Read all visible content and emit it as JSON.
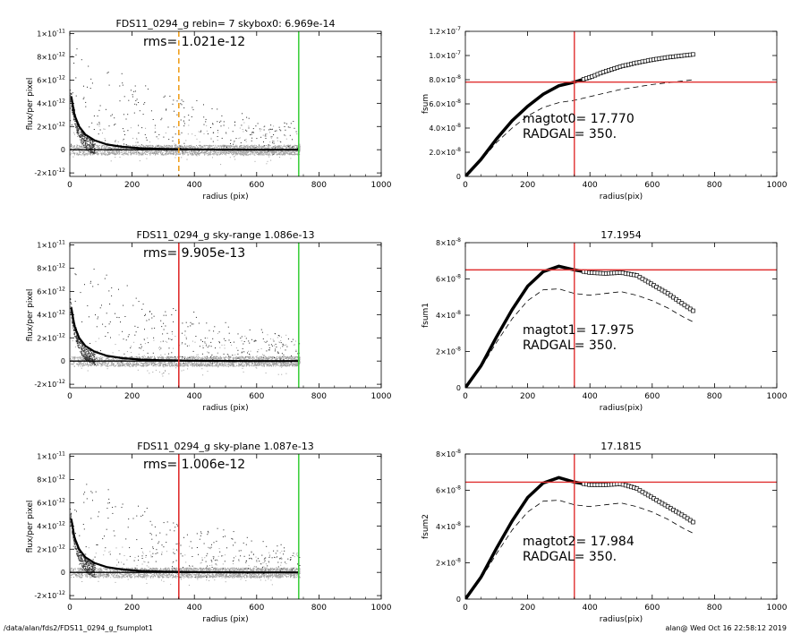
{
  "footer": {
    "path": "/data/alan/fds2/FDS11_0294_g_fsumplot1",
    "stamp": "alan@  Wed Oct 16 22:58:12 2019"
  },
  "colors": {
    "grey_points": "#a0a0a0",
    "profile": "#000000",
    "red_line": "#e03030",
    "green_line": "#40d040",
    "orange_dash": "#f0a020"
  },
  "chart_data": [
    {
      "type": "scatter",
      "title": "FDS11_0294_g rebin= 7    skybox0:  6.969e-14",
      "annotation": "rms= 1.021e-12",
      "xlabel": "radius (pix)",
      "ylabel": "flux/per pixel",
      "xlim": [
        0,
        1000
      ],
      "ylim": [
        -2.3e-12,
        1.02e-11
      ],
      "xticks": [
        "0",
        "200",
        "400",
        "600",
        "800",
        "1000"
      ],
      "yticks": [
        {
          "v": -2e-12,
          "m": "-2",
          "e": "-12"
        },
        {
          "v": 0,
          "m": "0",
          "e": ""
        },
        {
          "v": 2e-12,
          "m": "2",
          "e": "-12"
        },
        {
          "v": 4e-12,
          "m": "4",
          "e": "-12"
        },
        {
          "v": 6e-12,
          "m": "6",
          "e": "-12"
        },
        {
          "v": 8e-12,
          "m": "8",
          "e": "-12"
        },
        {
          "v": 1e-11,
          "m": "1",
          "e": "-11"
        }
      ],
      "vlines": [
        {
          "x": 350,
          "color": "orange",
          "dash": true
        },
        {
          "x": 735,
          "color": "green",
          "dash": false
        }
      ],
      "profile": [
        [
          5,
          4.6e-12
        ],
        [
          15,
          3e-12
        ],
        [
          30,
          2e-12
        ],
        [
          50,
          1.3e-12
        ],
        [
          80,
          8e-13
        ],
        [
          120,
          4.5e-13
        ],
        [
          170,
          2.5e-13
        ],
        [
          230,
          1.2e-13
        ],
        [
          300,
          6e-14
        ],
        [
          400,
          3e-14
        ],
        [
          500,
          1e-14
        ],
        [
          600,
          0
        ],
        [
          735,
          0
        ]
      ]
    },
    {
      "type": "line",
      "title": "",
      "annotation": [
        "magtot0=  17.770",
        "RADGAL=    350."
      ],
      "xlabel": "radius(pix)",
      "ylabel": "fsum",
      "xlim": [
        0,
        1000
      ],
      "ylim": [
        0,
        1.2e-07
      ],
      "xticks": [
        "0",
        "200",
        "400",
        "600",
        "800",
        "1000"
      ],
      "yticks": [
        {
          "v": 0,
          "m": "0",
          "e": ""
        },
        {
          "v": 2e-08,
          "m": "2.0",
          "e": "-8"
        },
        {
          "v": 4e-08,
          "m": "4.0",
          "e": "-8"
        },
        {
          "v": 6e-08,
          "m": "6.0",
          "e": "-8"
        },
        {
          "v": 8e-08,
          "m": "8.0",
          "e": "-8"
        },
        {
          "v": 1e-07,
          "m": "1.0",
          "e": "-7"
        },
        {
          "v": 1.2e-07,
          "m": "1.2",
          "e": "-7"
        }
      ],
      "vline_x": 350,
      "hline_y": 7.8e-08,
      "curve": [
        [
          0,
          0
        ],
        [
          50,
          1.4e-08
        ],
        [
          100,
          3.1e-08
        ],
        [
          150,
          4.6e-08
        ],
        [
          200,
          5.8e-08
        ],
        [
          250,
          6.8e-08
        ],
        [
          300,
          7.5e-08
        ],
        [
          350,
          7.8e-08
        ],
        [
          400,
          8.2e-08
        ],
        [
          450,
          8.7e-08
        ],
        [
          500,
          9.1e-08
        ],
        [
          550,
          9.4e-08
        ],
        [
          600,
          9.65e-08
        ],
        [
          650,
          9.85e-08
        ],
        [
          700,
          1e-07
        ],
        [
          735,
          1.01e-07
        ]
      ],
      "dashed": [
        [
          0,
          0
        ],
        [
          50,
          1.3e-08
        ],
        [
          100,
          2.8e-08
        ],
        [
          150,
          4e-08
        ],
        [
          200,
          5e-08
        ],
        [
          250,
          5.7e-08
        ],
        [
          300,
          6.1e-08
        ],
        [
          350,
          6.3e-08
        ],
        [
          400,
          6.6e-08
        ],
        [
          450,
          6.9e-08
        ],
        [
          500,
          7.2e-08
        ],
        [
          550,
          7.4e-08
        ],
        [
          600,
          7.6e-08
        ],
        [
          650,
          7.75e-08
        ],
        [
          700,
          7.9e-08
        ],
        [
          735,
          8e-08
        ]
      ]
    },
    {
      "type": "scatter",
      "title": "FDS11_0294_g sky-range  1.086e-13",
      "annotation": "rms= 9.905e-13",
      "xlabel": "radius (pix)",
      "ylabel": "flux/per pixel",
      "xlim": [
        0,
        1000
      ],
      "ylim": [
        -2.3e-12,
        1.02e-11
      ],
      "xticks": [
        "0",
        "200",
        "400",
        "600",
        "800",
        "1000"
      ],
      "yticks": [
        {
          "v": -2e-12,
          "m": "-2",
          "e": "-12"
        },
        {
          "v": 0,
          "m": "0",
          "e": ""
        },
        {
          "v": 2e-12,
          "m": "2",
          "e": "-12"
        },
        {
          "v": 4e-12,
          "m": "4",
          "e": "-12"
        },
        {
          "v": 6e-12,
          "m": "6",
          "e": "-12"
        },
        {
          "v": 8e-12,
          "m": "8",
          "e": "-12"
        },
        {
          "v": 1e-11,
          "m": "1",
          "e": "-11"
        }
      ],
      "vlines": [
        {
          "x": 350,
          "color": "red",
          "dash": false
        },
        {
          "x": 735,
          "color": "green",
          "dash": false
        }
      ],
      "profile": [
        [
          5,
          4.6e-12
        ],
        [
          15,
          3e-12
        ],
        [
          30,
          2e-12
        ],
        [
          50,
          1.3e-12
        ],
        [
          80,
          8e-13
        ],
        [
          120,
          4.5e-13
        ],
        [
          170,
          2.5e-13
        ],
        [
          230,
          1.2e-13
        ],
        [
          300,
          6e-14
        ],
        [
          400,
          3e-14
        ],
        [
          500,
          1e-14
        ],
        [
          600,
          0
        ],
        [
          735,
          0
        ]
      ]
    },
    {
      "type": "line",
      "title": "17.1954",
      "annotation": [
        "magtot1=  17.975",
        "RADGAL=    350."
      ],
      "xlabel": "radius(pix)",
      "ylabel": "fsum1",
      "xlim": [
        0,
        1000
      ],
      "ylim": [
        0,
        8e-08
      ],
      "xticks": [
        "0",
        "200",
        "400",
        "600",
        "800",
        "1000"
      ],
      "yticks": [
        {
          "v": 0,
          "m": "0",
          "e": ""
        },
        {
          "v": 2e-08,
          "m": "2",
          "e": "-8"
        },
        {
          "v": 4e-08,
          "m": "4",
          "e": "-8"
        },
        {
          "v": 6e-08,
          "m": "6",
          "e": "-8"
        },
        {
          "v": 8e-08,
          "m": "8",
          "e": "-8"
        }
      ],
      "vline_x": 350,
      "hline_y": 6.5e-08,
      "curve": [
        [
          0,
          0
        ],
        [
          50,
          1.2e-08
        ],
        [
          100,
          2.8e-08
        ],
        [
          150,
          4.3e-08
        ],
        [
          200,
          5.6e-08
        ],
        [
          250,
          6.4e-08
        ],
        [
          300,
          6.7e-08
        ],
        [
          350,
          6.5e-08
        ],
        [
          400,
          6.35e-08
        ],
        [
          450,
          6.3e-08
        ],
        [
          500,
          6.35e-08
        ],
        [
          550,
          6.2e-08
        ],
        [
          600,
          5.7e-08
        ],
        [
          650,
          5.2e-08
        ],
        [
          700,
          4.6e-08
        ],
        [
          735,
          4.2e-08
        ]
      ],
      "dashed": [
        [
          0,
          0
        ],
        [
          50,
          1.1e-08
        ],
        [
          100,
          2.5e-08
        ],
        [
          150,
          3.8e-08
        ],
        [
          200,
          4.8e-08
        ],
        [
          250,
          5.4e-08
        ],
        [
          300,
          5.45e-08
        ],
        [
          350,
          5.2e-08
        ],
        [
          400,
          5.1e-08
        ],
        [
          450,
          5.2e-08
        ],
        [
          500,
          5.3e-08
        ],
        [
          550,
          5.1e-08
        ],
        [
          600,
          4.8e-08
        ],
        [
          650,
          4.4e-08
        ],
        [
          700,
          3.9e-08
        ],
        [
          735,
          3.6e-08
        ]
      ]
    },
    {
      "type": "scatter",
      "title": "FDS11_0294_g sky-plane  1.087e-13",
      "annotation": "rms= 1.006e-12",
      "xlabel": "radius (pix)",
      "ylabel": "flux/per pixel",
      "xlim": [
        0,
        1000
      ],
      "ylim": [
        -2.3e-12,
        1.02e-11
      ],
      "xticks": [
        "0",
        "200",
        "400",
        "600",
        "800",
        "1000"
      ],
      "yticks": [
        {
          "v": -2e-12,
          "m": "-2",
          "e": "-12"
        },
        {
          "v": 0,
          "m": "0",
          "e": ""
        },
        {
          "v": 2e-12,
          "m": "2",
          "e": "-12"
        },
        {
          "v": 4e-12,
          "m": "4",
          "e": "-12"
        },
        {
          "v": 6e-12,
          "m": "6",
          "e": "-12"
        },
        {
          "v": 8e-12,
          "m": "8",
          "e": "-12"
        },
        {
          "v": 1e-11,
          "m": "1",
          "e": "-11"
        }
      ],
      "vlines": [
        {
          "x": 350,
          "color": "red",
          "dash": false
        },
        {
          "x": 735,
          "color": "green",
          "dash": false
        }
      ],
      "profile": [
        [
          5,
          4.6e-12
        ],
        [
          15,
          3e-12
        ],
        [
          30,
          2e-12
        ],
        [
          50,
          1.3e-12
        ],
        [
          80,
          8e-13
        ],
        [
          120,
          4.5e-13
        ],
        [
          170,
          2.5e-13
        ],
        [
          230,
          1.2e-13
        ],
        [
          300,
          6e-14
        ],
        [
          400,
          3e-14
        ],
        [
          500,
          1e-14
        ],
        [
          600,
          0
        ],
        [
          735,
          0
        ]
      ]
    },
    {
      "type": "line",
      "title": "17.1815",
      "annotation": [
        "magtot2=  17.984",
        "RADGAL=    350."
      ],
      "xlabel": "radius(pix)",
      "ylabel": "fsum2",
      "xlim": [
        0,
        1000
      ],
      "ylim": [
        0,
        8e-08
      ],
      "xticks": [
        "0",
        "200",
        "400",
        "600",
        "800",
        "1000"
      ],
      "yticks": [
        {
          "v": 0,
          "m": "0",
          "e": ""
        },
        {
          "v": 2e-08,
          "m": "2",
          "e": "-8"
        },
        {
          "v": 4e-08,
          "m": "4",
          "e": "-8"
        },
        {
          "v": 6e-08,
          "m": "6",
          "e": "-8"
        },
        {
          "v": 8e-08,
          "m": "8",
          "e": "-8"
        }
      ],
      "vline_x": 350,
      "hline_y": 6.45e-08,
      "curve": [
        [
          0,
          0
        ],
        [
          50,
          1.2e-08
        ],
        [
          100,
          2.8e-08
        ],
        [
          150,
          4.3e-08
        ],
        [
          200,
          5.6e-08
        ],
        [
          250,
          6.4e-08
        ],
        [
          300,
          6.7e-08
        ],
        [
          350,
          6.45e-08
        ],
        [
          400,
          6.3e-08
        ],
        [
          450,
          6.3e-08
        ],
        [
          500,
          6.35e-08
        ],
        [
          550,
          6.1e-08
        ],
        [
          600,
          5.6e-08
        ],
        [
          650,
          5.1e-08
        ],
        [
          700,
          4.6e-08
        ],
        [
          735,
          4.2e-08
        ]
      ],
      "dashed": [
        [
          0,
          0
        ],
        [
          50,
          1.1e-08
        ],
        [
          100,
          2.5e-08
        ],
        [
          150,
          3.8e-08
        ],
        [
          200,
          4.8e-08
        ],
        [
          250,
          5.4e-08
        ],
        [
          300,
          5.45e-08
        ],
        [
          350,
          5.2e-08
        ],
        [
          400,
          5.1e-08
        ],
        [
          450,
          5.2e-08
        ],
        [
          500,
          5.3e-08
        ],
        [
          550,
          5.1e-08
        ],
        [
          600,
          4.8e-08
        ],
        [
          650,
          4.4e-08
        ],
        [
          700,
          3.9e-08
        ],
        [
          735,
          3.6e-08
        ]
      ]
    }
  ]
}
